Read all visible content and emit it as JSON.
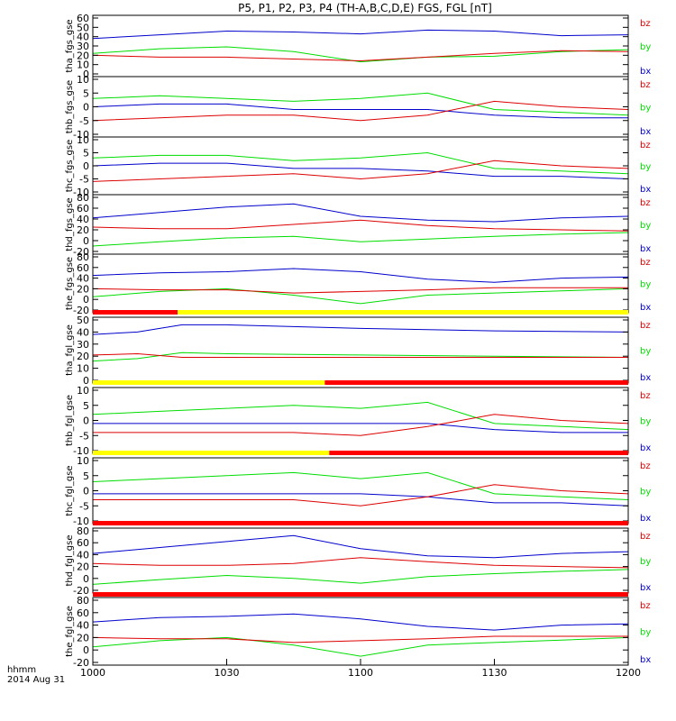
{
  "title": "P5, P1, P2, P3, P4 (TH-A,B,C,D,E) FGS, FGL [nT]",
  "footer": {
    "unit_label": "hhmm",
    "date_label": "2014 Aug 31"
  },
  "colors": {
    "bx": "#0000cc",
    "by": "#00dd00",
    "bz": "#dd0000",
    "bar_red": "#ff0000",
    "bar_yellow": "#ffff00"
  },
  "chart_data": {
    "type": "line",
    "x_axis": {
      "min": "10:00",
      "max": "12:00",
      "tick_labels": [
        "1000",
        "1030",
        "1100",
        "1130",
        "1200"
      ]
    },
    "legend_entries": [
      "bz",
      "by",
      "bx"
    ],
    "panels": [
      {
        "ylabel": "tha_fgs_gse",
        "ylim": [
          0,
          60
        ],
        "ytick_labels": [
          "0",
          "10",
          "20",
          "30",
          "40",
          "50",
          "60"
        ],
        "series": [
          {
            "name": "bx",
            "x": [
              "10:00",
              "10:15",
              "10:30",
              "10:45",
              "11:00",
              "11:15",
              "11:30",
              "11:45",
              "12:00"
            ],
            "values": [
              38,
              42,
              46,
              45,
              43,
              47,
              46,
              41,
              42
            ]
          },
          {
            "name": "by",
            "x": [
              "10:00",
              "10:15",
              "10:30",
              "10:45",
              "11:00",
              "11:15",
              "11:30",
              "11:45",
              "12:00"
            ],
            "values": [
              22,
              27,
              29,
              24,
              13,
              18,
              19,
              24,
              26
            ]
          },
          {
            "name": "bz",
            "x": [
              "10:00",
              "10:15",
              "10:30",
              "10:45",
              "11:00",
              "11:15",
              "11:30",
              "11:45",
              "12:00"
            ],
            "values": [
              20,
              18,
              18,
              16,
              14,
              18,
              22,
              25,
              24
            ]
          }
        ]
      },
      {
        "ylabel": "thb_fgs_gse",
        "ylim": [
          -10,
          10
        ],
        "ytick_labels": [
          "-10",
          "-5",
          "0",
          "5",
          "10"
        ],
        "series": [
          {
            "name": "bx",
            "x": [
              "10:00",
              "10:15",
              "10:30",
              "10:45",
              "11:00",
              "11:15",
              "11:30",
              "11:45",
              "12:00"
            ],
            "values": [
              0,
              1,
              1,
              -1,
              -1,
              -1,
              -3,
              -4,
              -4
            ]
          },
          {
            "name": "by",
            "x": [
              "10:00",
              "10:15",
              "10:30",
              "10:45",
              "11:00",
              "11:15",
              "11:30",
              "11:45",
              "12:00"
            ],
            "values": [
              3,
              4,
              3,
              2,
              3,
              5,
              -1,
              -2,
              -3
            ]
          },
          {
            "name": "bz",
            "x": [
              "10:00",
              "10:15",
              "10:30",
              "10:45",
              "11:00",
              "11:15",
              "11:30",
              "11:45",
              "12:00"
            ],
            "values": [
              -5,
              -4,
              -3,
              -3,
              -5,
              -3,
              2,
              0,
              -1
            ]
          }
        ]
      },
      {
        "ylabel": "thc_fgs_gse",
        "ylim": [
          -10,
          10
        ],
        "ytick_labels": [
          "-10",
          "-5",
          "0",
          "5",
          "10"
        ],
        "series": [
          {
            "name": "bx",
            "x": [
              "10:00",
              "10:15",
              "10:30",
              "10:45",
              "11:00",
              "11:15",
              "11:30",
              "11:45",
              "12:00"
            ],
            "values": [
              0,
              1,
              1,
              -1,
              -1,
              -2,
              -4,
              -4,
              -5
            ]
          },
          {
            "name": "by",
            "x": [
              "10:00",
              "10:15",
              "10:30",
              "10:45",
              "11:00",
              "11:15",
              "11:30",
              "11:45",
              "12:00"
            ],
            "values": [
              3,
              4,
              4,
              2,
              3,
              5,
              -1,
              -2,
              -3
            ]
          },
          {
            "name": "bz",
            "x": [
              "10:00",
              "10:15",
              "10:30",
              "10:45",
              "11:00",
              "11:15",
              "11:30",
              "11:45",
              "12:00"
            ],
            "values": [
              -6,
              -5,
              -4,
              -3,
              -5,
              -3,
              2,
              0,
              -1
            ]
          }
        ]
      },
      {
        "ylabel": "thd_fgs_gse",
        "ylim": [
          -20,
          80
        ],
        "ytick_labels": [
          "-20",
          "0",
          "20",
          "40",
          "60",
          "80"
        ],
        "series": [
          {
            "name": "bx",
            "x": [
              "10:00",
              "10:15",
              "10:30",
              "10:45",
              "11:00",
              "11:15",
              "11:30",
              "11:45",
              "12:00"
            ],
            "values": [
              42,
              52,
              62,
              68,
              45,
              38,
              35,
              42,
              45
            ]
          },
          {
            "name": "by",
            "x": [
              "10:00",
              "10:15",
              "10:30",
              "10:45",
              "11:00",
              "11:15",
              "11:30",
              "11:45",
              "12:00"
            ],
            "values": [
              -10,
              -2,
              5,
              8,
              -2,
              3,
              8,
              12,
              15
            ]
          },
          {
            "name": "bz",
            "x": [
              "10:00",
              "10:15",
              "10:30",
              "10:45",
              "11:00",
              "11:15",
              "11:30",
              "11:45",
              "12:00"
            ],
            "values": [
              25,
              22,
              22,
              30,
              38,
              28,
              22,
              20,
              18
            ]
          }
        ]
      },
      {
        "ylabel": "the_fgs_gse",
        "ylim": [
          -20,
          80
        ],
        "ytick_labels": [
          "-20",
          "0",
          "20",
          "40",
          "60",
          "80"
        ],
        "series": [
          {
            "name": "bx",
            "x": [
              "10:00",
              "10:15",
              "10:30",
              "10:45",
              "11:00",
              "11:15",
              "11:30",
              "11:45",
              "12:00"
            ],
            "values": [
              45,
              50,
              52,
              58,
              52,
              38,
              32,
              40,
              42
            ]
          },
          {
            "name": "by",
            "x": [
              "10:00",
              "10:15",
              "10:30",
              "10:45",
              "11:00",
              "11:15",
              "11:30",
              "11:45",
              "12:00"
            ],
            "values": [
              5,
              15,
              20,
              8,
              -8,
              8,
              12,
              16,
              20
            ]
          },
          {
            "name": "bz",
            "x": [
              "10:00",
              "10:15",
              "10:30",
              "10:45",
              "11:00",
              "11:15",
              "11:30",
              "11:45",
              "12:00"
            ],
            "values": [
              20,
              18,
              18,
              12,
              15,
              18,
              22,
              22,
              22
            ]
          }
        ]
      },
      {
        "ylabel": "tha_fgl_gse",
        "ylim": [
          0,
          50
        ],
        "ytick_labels": [
          "0",
          "10",
          "20",
          "30",
          "40",
          "50"
        ],
        "series": [
          {
            "name": "bx",
            "x": [
              "10:00",
              "10:10",
              "10:20",
              "10:30",
              "11:00",
              "11:30",
              "12:00"
            ],
            "values": [
              38,
              40,
              46,
              46,
              43,
              41,
              40
            ]
          },
          {
            "name": "by",
            "x": [
              "10:00",
              "10:10",
              "10:20",
              "10:30",
              "11:00",
              "11:30",
              "12:00"
            ],
            "values": [
              16,
              18,
              23,
              22,
              21,
              20,
              19
            ]
          },
          {
            "name": "bz",
            "x": [
              "10:00",
              "10:10",
              "10:20",
              "10:30",
              "11:00",
              "11:30",
              "12:00"
            ],
            "values": [
              21,
              22,
              19,
              19,
              19,
              19,
              19
            ]
          }
        ]
      },
      {
        "ylabel": "thb_fgl_gse",
        "ylim": [
          -10,
          10
        ],
        "ytick_labels": [
          "-10",
          "-5",
          "0",
          "5",
          "10"
        ],
        "series": [
          {
            "name": "bx",
            "x": [
              "10:00",
              "10:15",
              "10:30",
              "10:45",
              "11:00",
              "11:15",
              "11:30",
              "11:45",
              "12:00"
            ],
            "values": [
              -1,
              -1,
              -1,
              -1,
              -1,
              -1,
              -3,
              -4,
              -4
            ]
          },
          {
            "name": "by",
            "x": [
              "10:00",
              "10:15",
              "10:30",
              "10:45",
              "11:00",
              "11:15",
              "11:30",
              "11:45",
              "12:00"
            ],
            "values": [
              2,
              3,
              4,
              5,
              4,
              6,
              -1,
              -2,
              -3
            ]
          },
          {
            "name": "bz",
            "x": [
              "10:00",
              "10:15",
              "10:30",
              "10:45",
              "11:00",
              "11:15",
              "11:30",
              "11:45",
              "12:00"
            ],
            "values": [
              -4,
              -4,
              -4,
              -4,
              -5,
              -2,
              2,
              0,
              -1
            ]
          }
        ]
      },
      {
        "ylabel": "thc_fgl_gse",
        "ylim": [
          -10,
          10
        ],
        "ytick_labels": [
          "-10",
          "-5",
          "0",
          "5",
          "10"
        ],
        "series": [
          {
            "name": "bx",
            "x": [
              "10:00",
              "10:15",
              "10:30",
              "10:45",
              "11:00",
              "11:15",
              "11:30",
              "11:45",
              "12:00"
            ],
            "values": [
              -1,
              -1,
              -1,
              -1,
              -1,
              -2,
              -4,
              -4,
              -5
            ]
          },
          {
            "name": "by",
            "x": [
              "10:00",
              "10:15",
              "10:30",
              "10:45",
              "11:00",
              "11:15",
              "11:30",
              "11:45",
              "12:00"
            ],
            "values": [
              3,
              4,
              5,
              6,
              4,
              6,
              -1,
              -2,
              -3
            ]
          },
          {
            "name": "bz",
            "x": [
              "10:00",
              "10:15",
              "10:30",
              "10:45",
              "11:00",
              "11:15",
              "11:30",
              "11:45",
              "12:00"
            ],
            "values": [
              -3,
              -3,
              -3,
              -3,
              -5,
              -2,
              2,
              0,
              -1
            ]
          }
        ]
      },
      {
        "ylabel": "thd_fgl_gse",
        "ylim": [
          -20,
          80
        ],
        "ytick_labels": [
          "-20",
          "0",
          "20",
          "40",
          "60",
          "80"
        ],
        "series": [
          {
            "name": "bx",
            "x": [
              "10:00",
              "10:15",
              "10:30",
              "10:45",
              "11:00",
              "11:15",
              "11:30",
              "11:45",
              "12:00"
            ],
            "values": [
              42,
              52,
              62,
              72,
              50,
              38,
              35,
              42,
              45
            ]
          },
          {
            "name": "by",
            "x": [
              "10:00",
              "10:15",
              "10:30",
              "10:45",
              "11:00",
              "11:15",
              "11:30",
              "11:45",
              "12:00"
            ],
            "values": [
              -10,
              -2,
              5,
              0,
              -8,
              3,
              8,
              12,
              15
            ]
          },
          {
            "name": "bz",
            "x": [
              "10:00",
              "10:15",
              "10:30",
              "10:45",
              "11:00",
              "11:15",
              "11:30",
              "11:45",
              "12:00"
            ],
            "values": [
              25,
              22,
              22,
              25,
              35,
              28,
              22,
              20,
              18
            ]
          }
        ]
      },
      {
        "ylabel": "the_fgl_gse",
        "ylim": [
          -20,
          80
        ],
        "ytick_labels": [
          "-20",
          "0",
          "20",
          "40",
          "60",
          "80"
        ],
        "series": [
          {
            "name": "bx",
            "x": [
              "10:00",
              "10:15",
              "10:30",
              "10:45",
              "11:00",
              "11:15",
              "11:30",
              "11:45",
              "12:00"
            ],
            "values": [
              45,
              52,
              54,
              58,
              50,
              38,
              32,
              40,
              42
            ]
          },
          {
            "name": "by",
            "x": [
              "10:00",
              "10:15",
              "10:30",
              "10:45",
              "11:00",
              "11:15",
              "11:30",
              "11:45",
              "12:00"
            ],
            "values": [
              5,
              15,
              20,
              8,
              -10,
              8,
              12,
              16,
              20
            ]
          },
          {
            "name": "bz",
            "x": [
              "10:00",
              "10:15",
              "10:30",
              "10:45",
              "11:00",
              "11:15",
              "11:30",
              "11:45",
              "12:00"
            ],
            "values": [
              20,
              18,
              18,
              12,
              15,
              18,
              22,
              22,
              22
            ]
          }
        ]
      }
    ],
    "mode_bars": [
      {
        "above_panel": 6,
        "segments": [
          {
            "from": "10:00",
            "to": "10:19",
            "color": "red"
          },
          {
            "from": "10:19",
            "to": "12:00",
            "color": "yellow"
          }
        ]
      },
      {
        "above_panel": 7,
        "segments": [
          {
            "from": "10:00",
            "to": "10:52",
            "color": "yellow"
          },
          {
            "from": "10:52",
            "to": "12:00",
            "color": "red"
          }
        ]
      },
      {
        "above_panel": 8,
        "segments": [
          {
            "from": "10:00",
            "to": "10:53",
            "color": "yellow"
          },
          {
            "from": "10:53",
            "to": "12:00",
            "color": "red"
          }
        ]
      },
      {
        "above_panel": 9,
        "segments": [
          {
            "from": "10:00",
            "to": "12:00",
            "color": "red"
          }
        ]
      },
      {
        "above_panel": 10,
        "segments": [
          {
            "from": "10:00",
            "to": "12:00",
            "color": "red"
          }
        ]
      }
    ]
  }
}
